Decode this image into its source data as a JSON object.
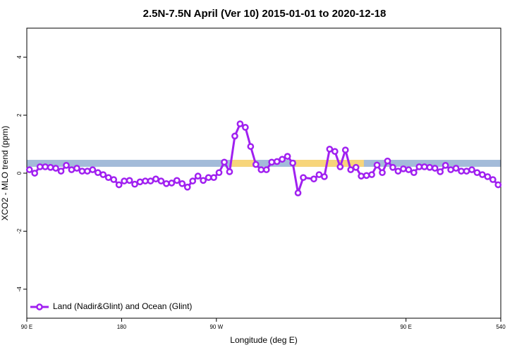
{
  "chart_data": {
    "type": "line",
    "title": "2.5N-7.5N April (Ver 10)   2015-01-01 to 2020-12-18",
    "x_label": "Longitude (deg E)",
    "y_label": "XCO2 - MLO trend (ppm)",
    "xlim": [
      90,
      540
    ],
    "ylim": [
      -5,
      5
    ],
    "xticks": [
      {
        "value": 90,
        "label": "90 E"
      },
      180,
      {
        "value": 270,
        "label": "90 W"
      },
      {
        "value": 450,
        "label": "90 E"
      },
      540
    ],
    "yticks": [
      -4,
      -2,
      0,
      2,
      4
    ],
    "band": {
      "ymin": 0.22,
      "ymax": 0.46,
      "color": "#a3bbd9"
    },
    "land_regions": {
      "color": "#f7d57a",
      "ranges": [
        [
          284.5,
          306
        ],
        [
          345,
          410
        ]
      ]
    },
    "legend": "bottom-left",
    "series": [
      {
        "name": "Land (Nadir&Glint) and Ocean (Glint)",
        "color": "#a020f0",
        "x": [
          92.5,
          97.5,
          102.5,
          107.5,
          112.5,
          117.5,
          122.5,
          127.5,
          132.5,
          137.5,
          142.5,
          147.5,
          152.5,
          157.5,
          162.5,
          167.5,
          172.5,
          177.5,
          182.5,
          187.5,
          192.5,
          197.5,
          202.5,
          207.5,
          212.5,
          217.5,
          222.5,
          227.5,
          232.5,
          237.5,
          242.5,
          247.5,
          252.5,
          257.5,
          262.5,
          267.5,
          272.5,
          277.5,
          282.5,
          287.5,
          292.5,
          297.5,
          302.5,
          307.5,
          312.5,
          317.5,
          322.5,
          327.5,
          332.5,
          337.5,
          342.5,
          347.5,
          352.5,
          362.5,
          367.5,
          372.5,
          377.5,
          382.5,
          387.5,
          392.5,
          397.5,
          402.5,
          407.5,
          412.5,
          417.5,
          422.5,
          427.5,
          432.5,
          437.5,
          442.5,
          447.5,
          452.5,
          457.5,
          462.5,
          467.5,
          472.5,
          477.5,
          482.5,
          487.5,
          492.5,
          497.5,
          502.5,
          507.5,
          512.5,
          517.5,
          522.5,
          527.5,
          532.5,
          537.5
        ],
        "values": [
          0.12,
          0.0,
          0.22,
          0.22,
          0.2,
          0.17,
          0.07,
          0.27,
          0.12,
          0.17,
          0.07,
          0.07,
          0.12,
          0.02,
          -0.05,
          -0.15,
          -0.22,
          -0.4,
          -0.27,
          -0.25,
          -0.38,
          -0.3,
          -0.27,
          -0.27,
          -0.2,
          -0.27,
          -0.36,
          -0.34,
          -0.25,
          -0.36,
          -0.48,
          -0.27,
          -0.1,
          -0.25,
          -0.15,
          -0.15,
          0.02,
          0.38,
          0.05,
          1.28,
          1.7,
          1.58,
          0.92,
          0.3,
          0.12,
          0.12,
          0.38,
          0.4,
          0.48,
          0.58,
          0.35,
          -0.68,
          -0.15,
          -0.2,
          -0.05,
          -0.12,
          0.83,
          0.75,
          0.22,
          0.8,
          0.12,
          0.2,
          -0.1,
          -0.08,
          -0.05,
          0.28,
          0.02,
          0.42,
          0.2,
          0.07,
          0.15,
          0.12,
          0.02,
          0.22,
          0.22,
          0.2,
          0.17,
          0.05,
          0.27,
          0.12,
          0.17,
          0.07,
          0.07,
          0.12,
          0.02,
          -0.05,
          -0.12,
          -0.22,
          -0.4
        ]
      }
    ]
  }
}
